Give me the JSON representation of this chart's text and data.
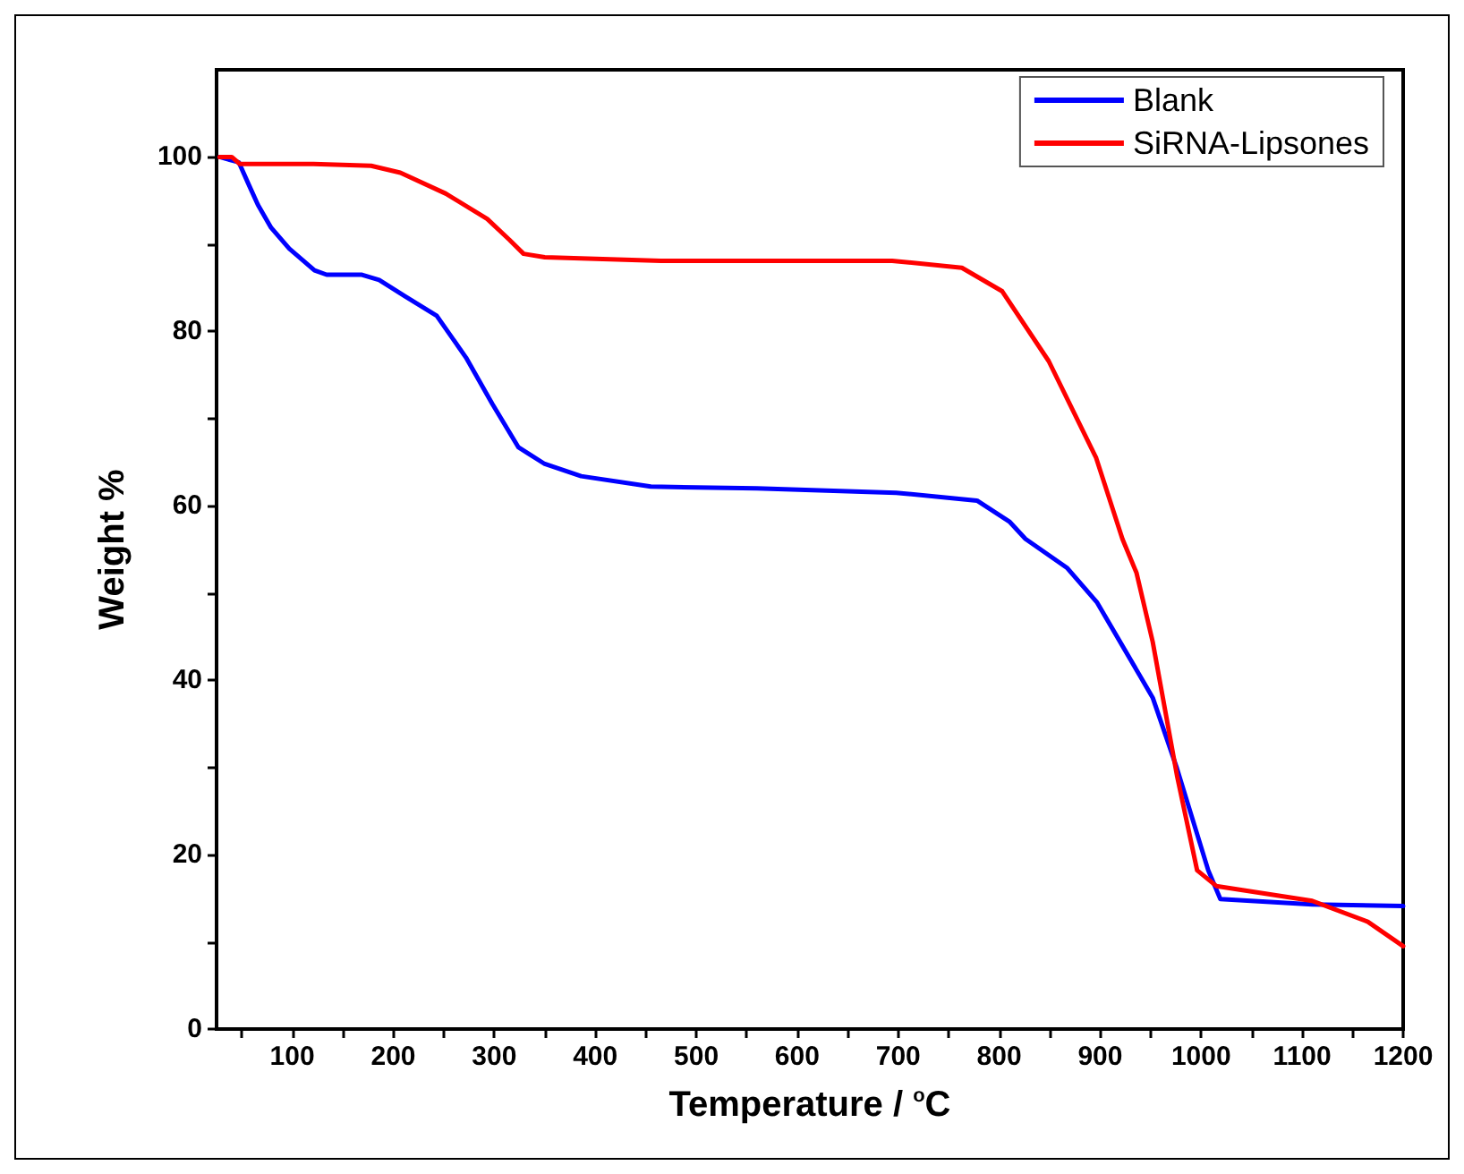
{
  "chart_data": {
    "type": "line",
    "xlabel": "Temperature / $^{o}$C",
    "ylabel": "Weight %",
    "xlim": [
      25,
      1200
    ],
    "ylim": [
      0,
      110
    ],
    "xticks": [
      {
        "value": 50,
        "label": null
      },
      100,
      {
        "value": 150,
        "label": null
      },
      200,
      {
        "value": 250,
        "label": null
      },
      300,
      {
        "value": 350,
        "label": null
      },
      400,
      {
        "value": 450,
        "label": null
      },
      500,
      {
        "value": 550,
        "label": null
      },
      600,
      {
        "value": 650,
        "label": null
      },
      700,
      {
        "value": 750,
        "label": null
      },
      800,
      {
        "value": 850,
        "label": null
      },
      900,
      {
        "value": 950,
        "label": null
      },
      1000,
      {
        "value": 1050,
        "label": null
      },
      1100,
      {
        "value": 1150,
        "label": null
      },
      1200
    ],
    "yticks": [
      0,
      {
        "value": 10,
        "label": null
      },
      20,
      {
        "value": 30,
        "label": null
      },
      40,
      {
        "value": 50,
        "label": null
      },
      60,
      {
        "value": 70,
        "label": null
      },
      80,
      {
        "value": 90,
        "label": null
      },
      100
    ],
    "legend": "top right",
    "grid": false,
    "marker": "none",
    "line_style": "solid",
    "series": [
      {
        "name": "Blank",
        "color": "#0000ff",
        "x": [
          28,
          47,
          57,
          66,
          79,
          97,
          122,
          134,
          169,
          186,
          212,
          243,
          272,
          298,
          324,
          350,
          386,
          455,
          560,
          698,
          778,
          810,
          826,
          867,
          897,
          952,
          976,
          1007,
          1019,
          1110,
          1200
        ],
        "values": [
          100,
          99.4,
          96.8,
          94.5,
          91.9,
          89.5,
          87,
          86.5,
          86.5,
          85.9,
          84,
          81.8,
          77,
          71.7,
          66.7,
          64.8,
          63.4,
          62.2,
          62,
          61.5,
          60.6,
          58.2,
          56.2,
          52.9,
          48.9,
          38,
          29.9,
          18.2,
          14.9,
          14.3,
          14.1
        ]
      },
      {
        "name": "SiRNA-Lipsones",
        "color": "#ff0000",
        "x": [
          28,
          40,
          48,
          121,
          178,
          207,
          252,
          293,
          315,
          329,
          350,
          465,
          694,
          763,
          803,
          849,
          896,
          922,
          936,
          952,
          976,
          996,
          1015,
          1110,
          1165,
          1200
        ],
        "values": [
          100,
          100,
          99.2,
          99.2,
          99,
          98.2,
          95.8,
          92.9,
          90.5,
          88.9,
          88.5,
          88.1,
          88.1,
          87.3,
          84.6,
          76.6,
          65.5,
          56.2,
          52.3,
          44.4,
          29.1,
          18.2,
          16.4,
          14.7,
          12.3,
          9.5
        ]
      }
    ]
  }
}
